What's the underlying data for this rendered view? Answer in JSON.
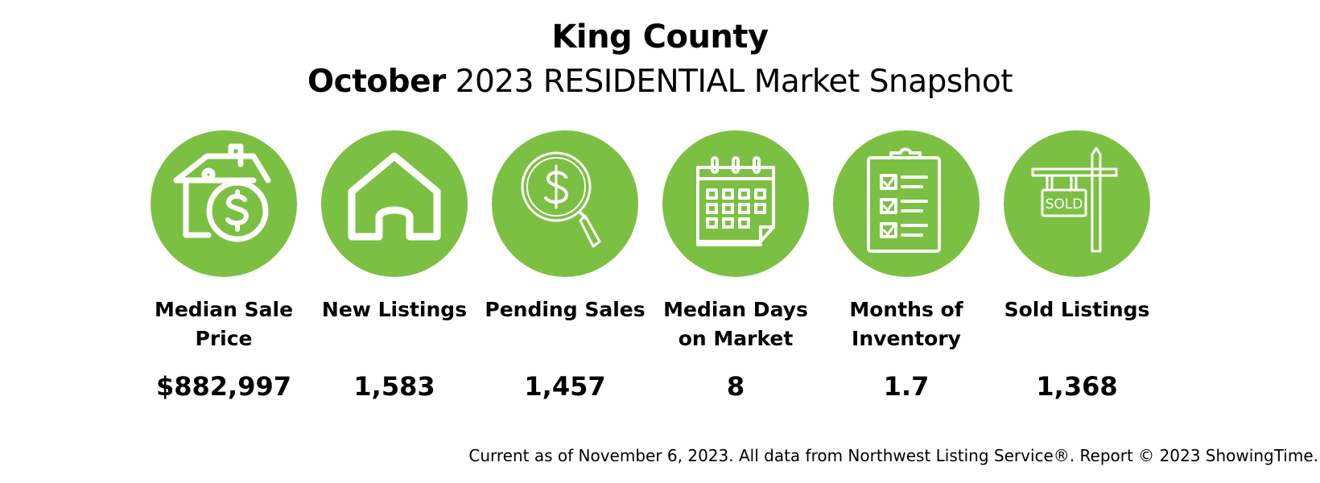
{
  "header": {
    "title": "King County",
    "subtitle_month": "October",
    "subtitle_rest": " 2023 RESIDENTIAL Market Snapshot"
  },
  "colors": {
    "accent_green": "#7cc043",
    "icon_white": "#ffffff"
  },
  "metrics": [
    {
      "icon": "house-dollar-icon",
      "label": "Median Sale Price",
      "value": "$882,997"
    },
    {
      "icon": "house-icon",
      "label": "New Listings",
      "value": "1,583"
    },
    {
      "icon": "magnifier-dollar-icon",
      "label": "Pending Sales",
      "value": "1,457"
    },
    {
      "icon": "calendar-icon",
      "label": "Median Days on Market",
      "value": "8"
    },
    {
      "icon": "clipboard-checklist-icon",
      "label": "Months of Inventory",
      "value": "1.7"
    },
    {
      "icon": "sold-sign-icon",
      "label": "Sold Listings",
      "value": "1,368",
      "sign_text": "SOLD"
    }
  ],
  "footer": {
    "text": "Current as of November 6, 2023. All data from Northwest Listing Service®. Report © 2023 ShowingTime."
  }
}
